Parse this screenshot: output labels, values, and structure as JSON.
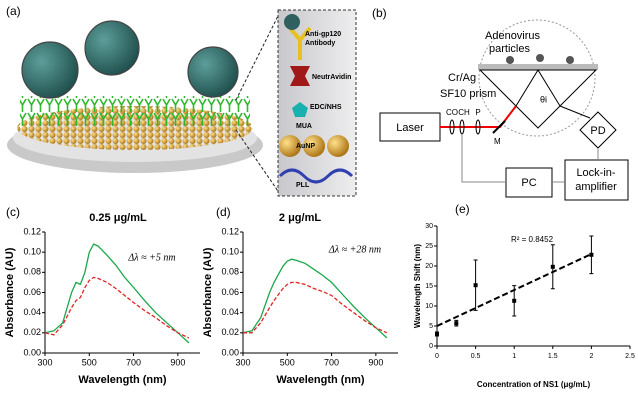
{
  "panel_a": {
    "label": "(a)",
    "antibody": [
      "Anti-gp120",
      "Antibody"
    ],
    "neutravidin": "NeutrAvidin",
    "linker": "EDC/NHS",
    "mua": "MUA",
    "aunp": "AuNP",
    "pll": "PLL"
  },
  "panel_b": {
    "label": "(b)",
    "sample": [
      "Adenovirus",
      "particles"
    ],
    "film": "Cr/Ag",
    "prism": "SF10 prism",
    "angle": "θi",
    "laser": "Laser",
    "optics": [
      "CO",
      "CH",
      "P"
    ],
    "mirror": "M",
    "detector": "PD",
    "computer": "PC",
    "amplifier": [
      "Lock-in-",
      "amplifier"
    ]
  },
  "chart_data": [
    {
      "type": "line",
      "panel": "(c)",
      "title": "0.25 μg/mL",
      "annotation": "Δλ ≈ +5 nm",
      "x_label": "Wavelength (nm)",
      "y_label": "Absorbance (AU)",
      "x": [
        300,
        340,
        380,
        420,
        440,
        460,
        480,
        500,
        520,
        540,
        580,
        620,
        660,
        700,
        750,
        800,
        850,
        900,
        950
      ],
      "series": [
        {
          "color": "#1aa84a",
          "dash": false,
          "values": [
            0.02,
            0.022,
            0.03,
            0.06,
            0.07,
            0.068,
            0.08,
            0.1,
            0.108,
            0.106,
            0.097,
            0.087,
            0.075,
            0.065,
            0.052,
            0.04,
            0.03,
            0.02,
            0.01
          ]
        },
        {
          "color": "#e02424",
          "dash": true,
          "values": [
            0.02,
            0.018,
            0.028,
            0.045,
            0.052,
            0.055,
            0.065,
            0.072,
            0.075,
            0.074,
            0.07,
            0.064,
            0.057,
            0.05,
            0.042,
            0.035,
            0.027,
            0.02,
            0.015
          ]
        }
      ],
      "xlim": [
        300,
        1000
      ],
      "xticks": [
        300,
        500,
        700,
        900
      ],
      "ylim": [
        0,
        0.12
      ],
      "yticks": [
        {
          "value": 0,
          "label": "0.00"
        },
        {
          "value": 0.02,
          "label": "0.02"
        },
        {
          "value": 0.04,
          "label": "0.04"
        },
        {
          "value": 0.06,
          "label": "0.06"
        },
        {
          "value": 0.08,
          "label": "0.08"
        },
        {
          "value": 0.1,
          "label": "0.10"
        },
        {
          "value": 0.12,
          "label": "0.12"
        }
      ]
    },
    {
      "type": "line",
      "panel": "(d)",
      "title": "2 μg/mL",
      "annotation": "Δλ ≈ +28 nm",
      "x_label": "Wavelength (nm)",
      "y_label": "Absorbance (AU)",
      "x": [
        300,
        340,
        380,
        420,
        440,
        460,
        480,
        500,
        520,
        540,
        580,
        620,
        660,
        700,
        750,
        800,
        850,
        900,
        950
      ],
      "series": [
        {
          "color": "#1aa84a",
          "dash": false,
          "values": [
            0.02,
            0.022,
            0.035,
            0.06,
            0.07,
            0.078,
            0.086,
            0.091,
            0.093,
            0.092,
            0.089,
            0.083,
            0.077,
            0.07,
            0.058,
            0.046,
            0.035,
            0.025,
            0.015
          ]
        },
        {
          "color": "#e02424",
          "dash": true,
          "values": [
            0.02,
            0.02,
            0.03,
            0.045,
            0.052,
            0.058,
            0.064,
            0.068,
            0.07,
            0.07,
            0.068,
            0.064,
            0.061,
            0.057,
            0.048,
            0.04,
            0.032,
            0.025,
            0.02
          ]
        }
      ],
      "xlim": [
        300,
        1000
      ],
      "xticks": [
        300,
        500,
        700,
        900
      ],
      "ylim": [
        0,
        0.12
      ],
      "yticks": [
        {
          "value": 0,
          "label": "0.00"
        },
        {
          "value": 0.02,
          "label": "0.02"
        },
        {
          "value": 0.04,
          "label": "0.04"
        },
        {
          "value": 0.06,
          "label": "0.06"
        },
        {
          "value": 0.08,
          "label": "0.08"
        },
        {
          "value": 0.1,
          "label": "0.10"
        },
        {
          "value": 0.12,
          "label": "0.12"
        }
      ]
    },
    {
      "type": "scatter",
      "panel": "(e)",
      "annotation": "R² = 0.8452",
      "x_label": "Concentration of NS1 (μg/mL)",
      "y_label": "Wavelength Shift (nm)",
      "x": [
        0,
        0.25,
        0.5,
        1,
        1.5,
        2
      ],
      "values": [
        3,
        5.7,
        15.2,
        11.3,
        19.8,
        22.8
      ],
      "errors": [
        0.5,
        0.7,
        6.3,
        3.8,
        5.5,
        4.7
      ],
      "color": "#000000",
      "trendline": {
        "x": [
          0,
          2
        ],
        "y": [
          5,
          23
        ]
      },
      "xlim": [
        0,
        2.5
      ],
      "xticks": [
        0,
        0.5,
        1,
        1.5,
        2,
        2.5
      ],
      "ylim": [
        0,
        30
      ],
      "yticks": [
        0,
        5,
        10,
        15,
        20,
        25,
        30
      ]
    }
  ]
}
